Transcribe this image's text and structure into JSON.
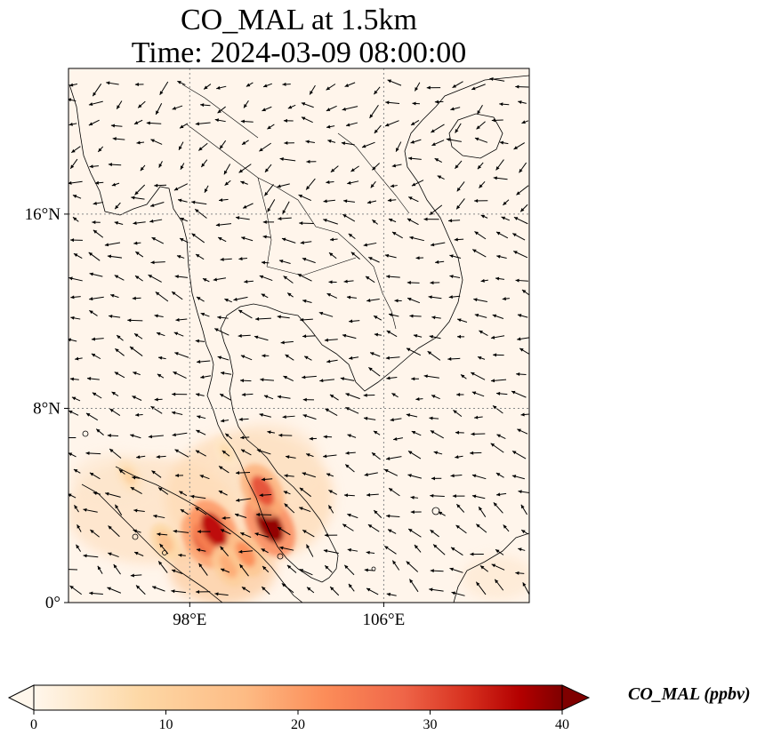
{
  "title": {
    "line1": "CO_MAL at 1.5km",
    "line2": "Time: 2024-03-09 08:00:00"
  },
  "map": {
    "extent": {
      "lon": [
        93,
        112
      ],
      "lat": [
        0,
        22
      ]
    },
    "lat_ticks": [
      {
        "value": 0,
        "label": "0°"
      },
      {
        "value": 8,
        "label": "8°N"
      },
      {
        "value": 16,
        "label": "16°N"
      }
    ],
    "lon_ticks": [
      {
        "value": 98,
        "label": "98°E"
      },
      {
        "value": 106,
        "label": "106°E"
      }
    ],
    "gridlines": true,
    "background_color": "#fff5eb",
    "coastline_color": "#000000"
  },
  "chart_data": {
    "type": "heatmap",
    "variable": "CO_MAL",
    "units": "ppbv",
    "vmin": 0,
    "vmax": 40,
    "colormap": "OrRd",
    "hotspots": [
      {
        "lon": 98.6,
        "lat": 2.6,
        "value": 33
      },
      {
        "lon": 99.0,
        "lat": 3.0,
        "value": 36
      },
      {
        "lon": 101.3,
        "lat": 3.2,
        "value": 39
      },
      {
        "lon": 101.0,
        "lat": 4.6,
        "value": 30
      },
      {
        "lon": 99.6,
        "lat": 1.5,
        "value": 18
      },
      {
        "lon": 97.0,
        "lat": 2.5,
        "value": 14
      },
      {
        "lon": 95.5,
        "lat": 5.2,
        "value": 9
      },
      {
        "lon": 100.3,
        "lat": 2.0,
        "value": 22
      },
      {
        "lon": 99.5,
        "lat": 6.2,
        "value": 7
      }
    ],
    "wind_vectors": "prevailing north-easterly to easterly flow across Indochina and the Gulf of Thailand"
  },
  "colorbar": {
    "ticks": [
      0,
      10,
      20,
      30,
      40
    ],
    "label": "CO_MAL (ppbv)",
    "extend": "both"
  }
}
